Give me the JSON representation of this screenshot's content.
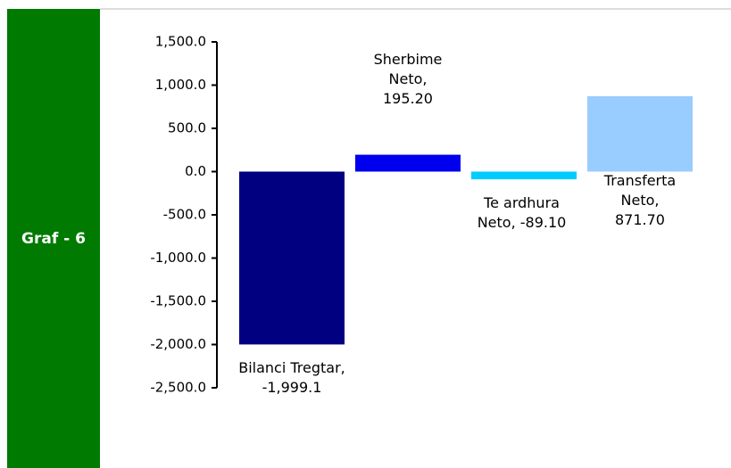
{
  "side_label": "Graf - 6",
  "chart_data": {
    "type": "bar",
    "categories": [
      "Bilanci Tregtar",
      "Sherbime Neto",
      "Te ardhura Neto",
      "Transferta Neto"
    ],
    "values": [
      -1999.1,
      195.2,
      -89.1,
      871.7
    ],
    "value_labels": [
      "Bilanci Tregtar, -1,999.1",
      "Sherbime Neto, 195.20",
      "Te ardhura Neto, -89.10",
      "Transferta Neto, 871.70"
    ],
    "colors": [
      "#000080",
      "#0000ee",
      "#00ccff",
      "#99ccff"
    ],
    "ylim": [
      -2500,
      1500
    ],
    "yticks": [
      {
        "value": -2500,
        "label": "-2,500.0"
      },
      {
        "value": -2000,
        "label": "-2,000.0"
      },
      {
        "value": -1500,
        "label": "-1,500.0"
      },
      {
        "value": -1000,
        "label": "-1,000.0"
      },
      {
        "value": -500,
        "label": "-500.0"
      },
      {
        "value": 0,
        "label": "0.0"
      },
      {
        "value": 500,
        "label": "500.0"
      },
      {
        "value": 1000,
        "label": "1,000.0"
      },
      {
        "value": 1500,
        "label": "1,500.0"
      }
    ],
    "grid": false
  }
}
